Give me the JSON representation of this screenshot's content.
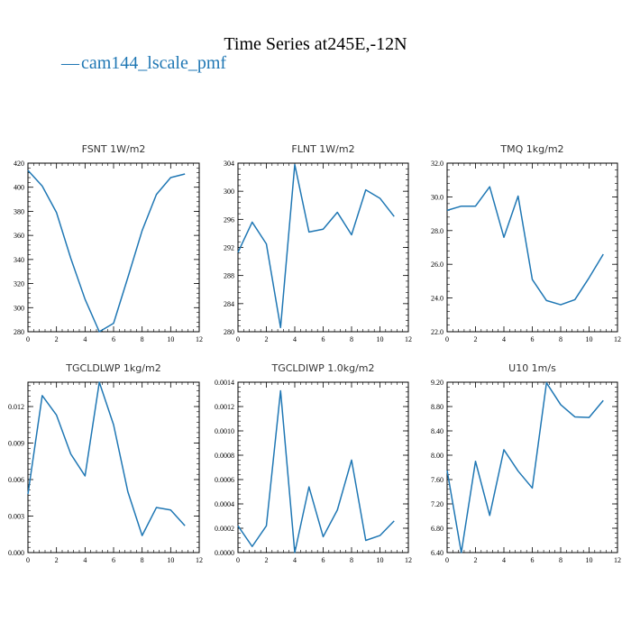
{
  "figure": {
    "title": "Time Series at245E,-12N",
    "legend": {
      "marker": "—",
      "label": "cam144_lscale_pmf",
      "color": "#1f77b4"
    }
  },
  "chart_data": [
    {
      "type": "line",
      "title": "FSNT   1W/m2",
      "x": [
        0,
        1,
        2,
        3,
        4,
        5,
        6,
        7,
        8,
        9,
        10,
        11
      ],
      "series": [
        {
          "values": [
            414,
            401,
            379,
            341,
            307,
            280,
            287,
            325,
            364,
            394,
            408,
            411
          ]
        }
      ],
      "xlim": [
        0,
        12
      ],
      "ylim": [
        280,
        420
      ],
      "xticks": [
        "0",
        "2",
        "4",
        "6",
        "8",
        "10",
        "12"
      ],
      "yticks": [
        "280",
        "300",
        "320",
        "340",
        "360",
        "380",
        "400",
        "420"
      ],
      "minor_x": 4,
      "minor_y": 4
    },
    {
      "type": "line",
      "title": "FLNT   1W/m2",
      "x": [
        0,
        1,
        2,
        3,
        4,
        5,
        6,
        7,
        8,
        9,
        10,
        11
      ],
      "series": [
        {
          "values": [
            291.3,
            295.6,
            292.5,
            280.6,
            303.8,
            294.2,
            294.6,
            297.0,
            293.8,
            300.2,
            299.0,
            296.4
          ]
        }
      ],
      "xlim": [
        0,
        12
      ],
      "ylim": [
        280,
        304
      ],
      "xticks": [
        "0",
        "2",
        "4",
        "6",
        "8",
        "10",
        "12"
      ],
      "yticks": [
        "280",
        "284",
        "288",
        "292",
        "296",
        "300",
        "304"
      ],
      "minor_x": 4,
      "minor_y": 4
    },
    {
      "type": "line",
      "title": "TMQ   1kg/m2",
      "x": [
        0,
        1,
        2,
        3,
        4,
        5,
        6,
        7,
        8,
        9,
        10,
        11
      ],
      "series": [
        {
          "values": [
            29.2,
            29.45,
            29.45,
            30.6,
            27.6,
            30.05,
            25.1,
            23.85,
            23.6,
            23.9,
            25.2,
            26.6
          ]
        }
      ],
      "xlim": [
        0,
        12
      ],
      "ylim": [
        22,
        32
      ],
      "xticks": [
        "0",
        "2",
        "4",
        "6",
        "8",
        "10",
        "12"
      ],
      "yticks": [
        "22.0",
        "24.0",
        "26.0",
        "28.0",
        "30.0",
        "32.0"
      ],
      "minor_x": 4,
      "minor_y": 4
    },
    {
      "type": "line",
      "title": "TGCLDLWP   1kg/m2",
      "x": [
        0,
        1,
        2,
        3,
        4,
        5,
        6,
        7,
        8,
        9,
        10,
        11
      ],
      "series": [
        {
          "values": [
            0.0048,
            0.0129,
            0.0113,
            0.0081,
            0.0063,
            0.014,
            0.0105,
            0.005,
            0.0014,
            0.0037,
            0.0035,
            0.0022
          ]
        }
      ],
      "xlim": [
        0,
        12
      ],
      "ylim": [
        0,
        0.014
      ],
      "xticks": [
        "0",
        "2",
        "4",
        "6",
        "8",
        "10",
        "12"
      ],
      "yticks": [
        "0.000",
        "0.003",
        "0.006",
        "0.009",
        "0.012"
      ],
      "ytick_values": [
        0,
        0.003,
        0.006,
        0.009,
        0.012
      ],
      "minor_x": 4,
      "minor_y": 6
    },
    {
      "type": "line",
      "title": "TGCLDIWP   1.0kg/m2",
      "x": [
        0,
        1,
        2,
        3,
        4,
        5,
        6,
        7,
        8,
        9,
        10,
        11
      ],
      "series": [
        {
          "values": [
            0.00022,
            5e-05,
            0.00022,
            0.00133,
            0.0,
            0.00054,
            0.00013,
            0.00035,
            0.00076,
            0.0001,
            0.00014,
            0.00026
          ]
        }
      ],
      "xlim": [
        0,
        12
      ],
      "ylim": [
        0,
        0.0014
      ],
      "xticks": [
        "0",
        "2",
        "4",
        "6",
        "8",
        "10",
        "12"
      ],
      "yticks": [
        "0.0000",
        "0.0002",
        "0.0004",
        "0.0006",
        "0.0008",
        "0.0010",
        "0.0012",
        "0.0014"
      ],
      "minor_x": 4,
      "minor_y": 4
    },
    {
      "type": "line",
      "title": "U10   1m/s",
      "x": [
        0,
        1,
        2,
        3,
        4,
        5,
        6,
        7,
        8,
        9,
        10,
        11
      ],
      "series": [
        {
          "values": [
            7.75,
            6.4,
            7.9,
            7.01,
            8.09,
            7.74,
            7.46,
            9.19,
            8.83,
            8.63,
            8.62,
            8.9
          ]
        }
      ],
      "xlim": [
        0,
        12
      ],
      "ylim": [
        6.4,
        9.2
      ],
      "xticks": [
        "0",
        "2",
        "4",
        "6",
        "8",
        "10",
        "12"
      ],
      "yticks": [
        "6.40",
        "6.80",
        "7.20",
        "7.60",
        "8.00",
        "8.40",
        "8.80",
        "9.20"
      ],
      "minor_x": 4,
      "minor_y": 4
    }
  ]
}
